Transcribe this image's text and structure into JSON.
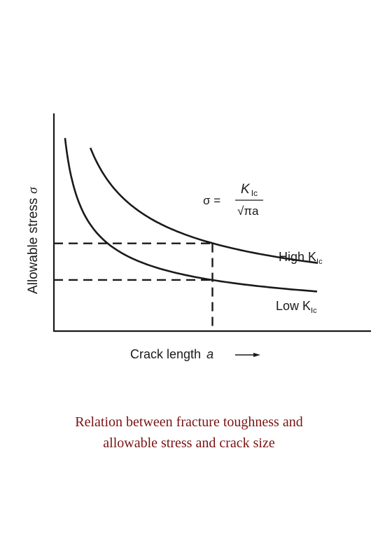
{
  "chart_data": {
    "type": "line",
    "title": "",
    "xlabel": "Crack length",
    "xlabel_symbol": "a",
    "ylabel": "Allowable stress",
    "ylabel_symbol": "σ",
    "grid": false,
    "formula": {
      "lhs": "σ =",
      "numerator": "K",
      "numerator_sub": "Ic",
      "denominator": "√πa"
    },
    "x_range": [
      0,
      10
    ],
    "y_range": [
      0,
      10
    ],
    "series": [
      {
        "name": "High K",
        "name_sub": "Ic",
        "K": 16,
        "x": [
          1.15,
          1.5,
          2,
          2.5,
          3,
          3.5,
          4,
          5,
          6,
          7,
          8.3
        ],
        "color": "#1a1a1a"
      },
      {
        "name": "Low K",
        "name_sub": "Ic",
        "K": 9.3,
        "x": [
          0.35,
          0.6,
          0.9,
          1.3,
          1.8,
          2.4,
          3,
          4,
          5,
          6,
          7,
          8.3
        ],
        "color": "#1a1a1a"
      }
    ],
    "reference_lines": {
      "crack_length": 5,
      "high_stress": 4.03,
      "low_stress": 2.35
    }
  },
  "caption": {
    "line1": "Relation between fracture toughness and",
    "line2": "allowable stress and crack size"
  }
}
